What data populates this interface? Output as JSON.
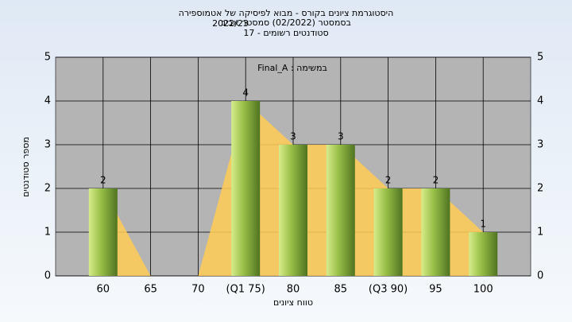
{
  "chart_data": {
    "type": "bar",
    "title": "היסטוגרמת ציונים בקורס - מבוא לפיסיקה של אטמוספירה",
    "subtitles": [
      "בסמסטר  (02/2022)  סמסטר אביב",
      "2022/23",
      "סטודנטים רשומים - 17"
    ],
    "annotation": "Final_A : במשימה",
    "x_label": "טווח ציונים",
    "y_label": "מספר סטודנטים",
    "categories": [
      "60",
      "65",
      "70",
      "(Q1 75)",
      "80",
      "85",
      "(Q3 90)",
      "95",
      "100"
    ],
    "values": [
      2,
      0,
      0,
      4,
      3,
      3,
      2,
      2,
      1
    ],
    "color": "#8fb43a",
    "area_color": "#ffcc55",
    "ylim": [
      0,
      5
    ],
    "yticks": [
      0,
      1,
      2,
      3,
      4,
      5
    ],
    "grid": true
  }
}
